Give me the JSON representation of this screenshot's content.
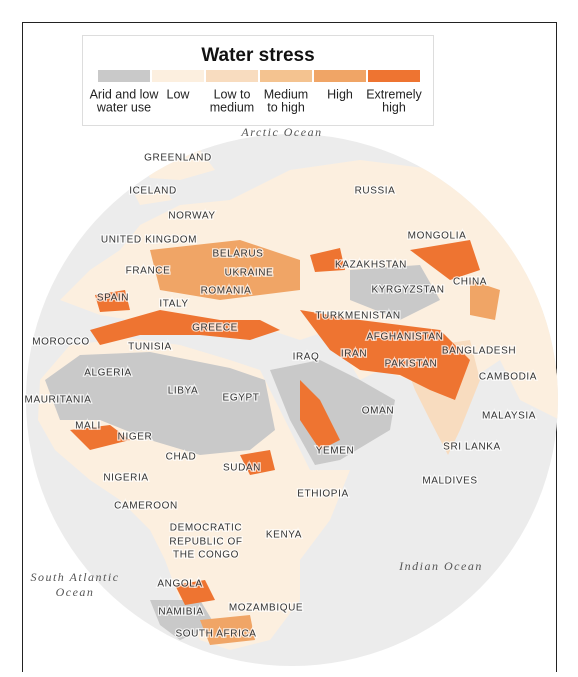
{
  "title": "Water stress",
  "legend": [
    {
      "lines": [
        "Arid and low",
        "water use"
      ],
      "color": "#c9c9c9"
    },
    {
      "lines": [
        "Low"
      ],
      "color": "#fcefdf"
    },
    {
      "lines": [
        "Low to",
        "medium"
      ],
      "color": "#f8dcbf"
    },
    {
      "lines": [
        "Medium",
        "to high"
      ],
      "color": "#f4c390"
    },
    {
      "lines": [
        "High"
      ],
      "color": "#f0a566"
    },
    {
      "lines": [
        "Extremely",
        "high"
      ],
      "color": "#ee7431"
    }
  ],
  "oceans": [
    {
      "lines": [
        "Arctic Ocean"
      ]
    },
    {
      "lines": [
        "South Atlantic",
        "Ocean"
      ]
    },
    {
      "lines": [
        "Indian Ocean"
      ]
    }
  ],
  "labels": [
    "GREENLAND",
    "ICELAND",
    "RUSSIA",
    "NORWAY",
    "UNITED KINGDOM",
    "BELARUS",
    "MONGOLIA",
    "FRANCE",
    "UKRAINE",
    "KAZAKHSTAN",
    "ROMANIA",
    "KYRGYZSTAN",
    "CHINA",
    "SPAIN",
    "ITALY",
    "TURKMENISTAN",
    "GREECE",
    "AFGHANISTAN",
    "MOROCCO",
    "TUNISIA",
    "IRAQ",
    "IRAN",
    "BANGLADESH",
    "PAKISTAN",
    "ALGERIA",
    "LIBYA",
    "EGYPT",
    "CAMBODIA",
    "MAURITANIA",
    "OMAN",
    "MALAYSIA",
    "MALI",
    "NIGER",
    "SRI LANKA",
    "CHAD",
    "YEMEN",
    "SUDAN",
    "NIGERIA",
    "MALDIVES",
    "ETHIOPIA",
    "CAMEROON",
    "DEMOCRATIC",
    "REPUBLIC OF",
    "THE CONGO",
    "KENYA",
    "ANGOLA",
    "NAMIBIA",
    "MOZAMBIQUE",
    "SOUTH AFRICA"
  ]
}
